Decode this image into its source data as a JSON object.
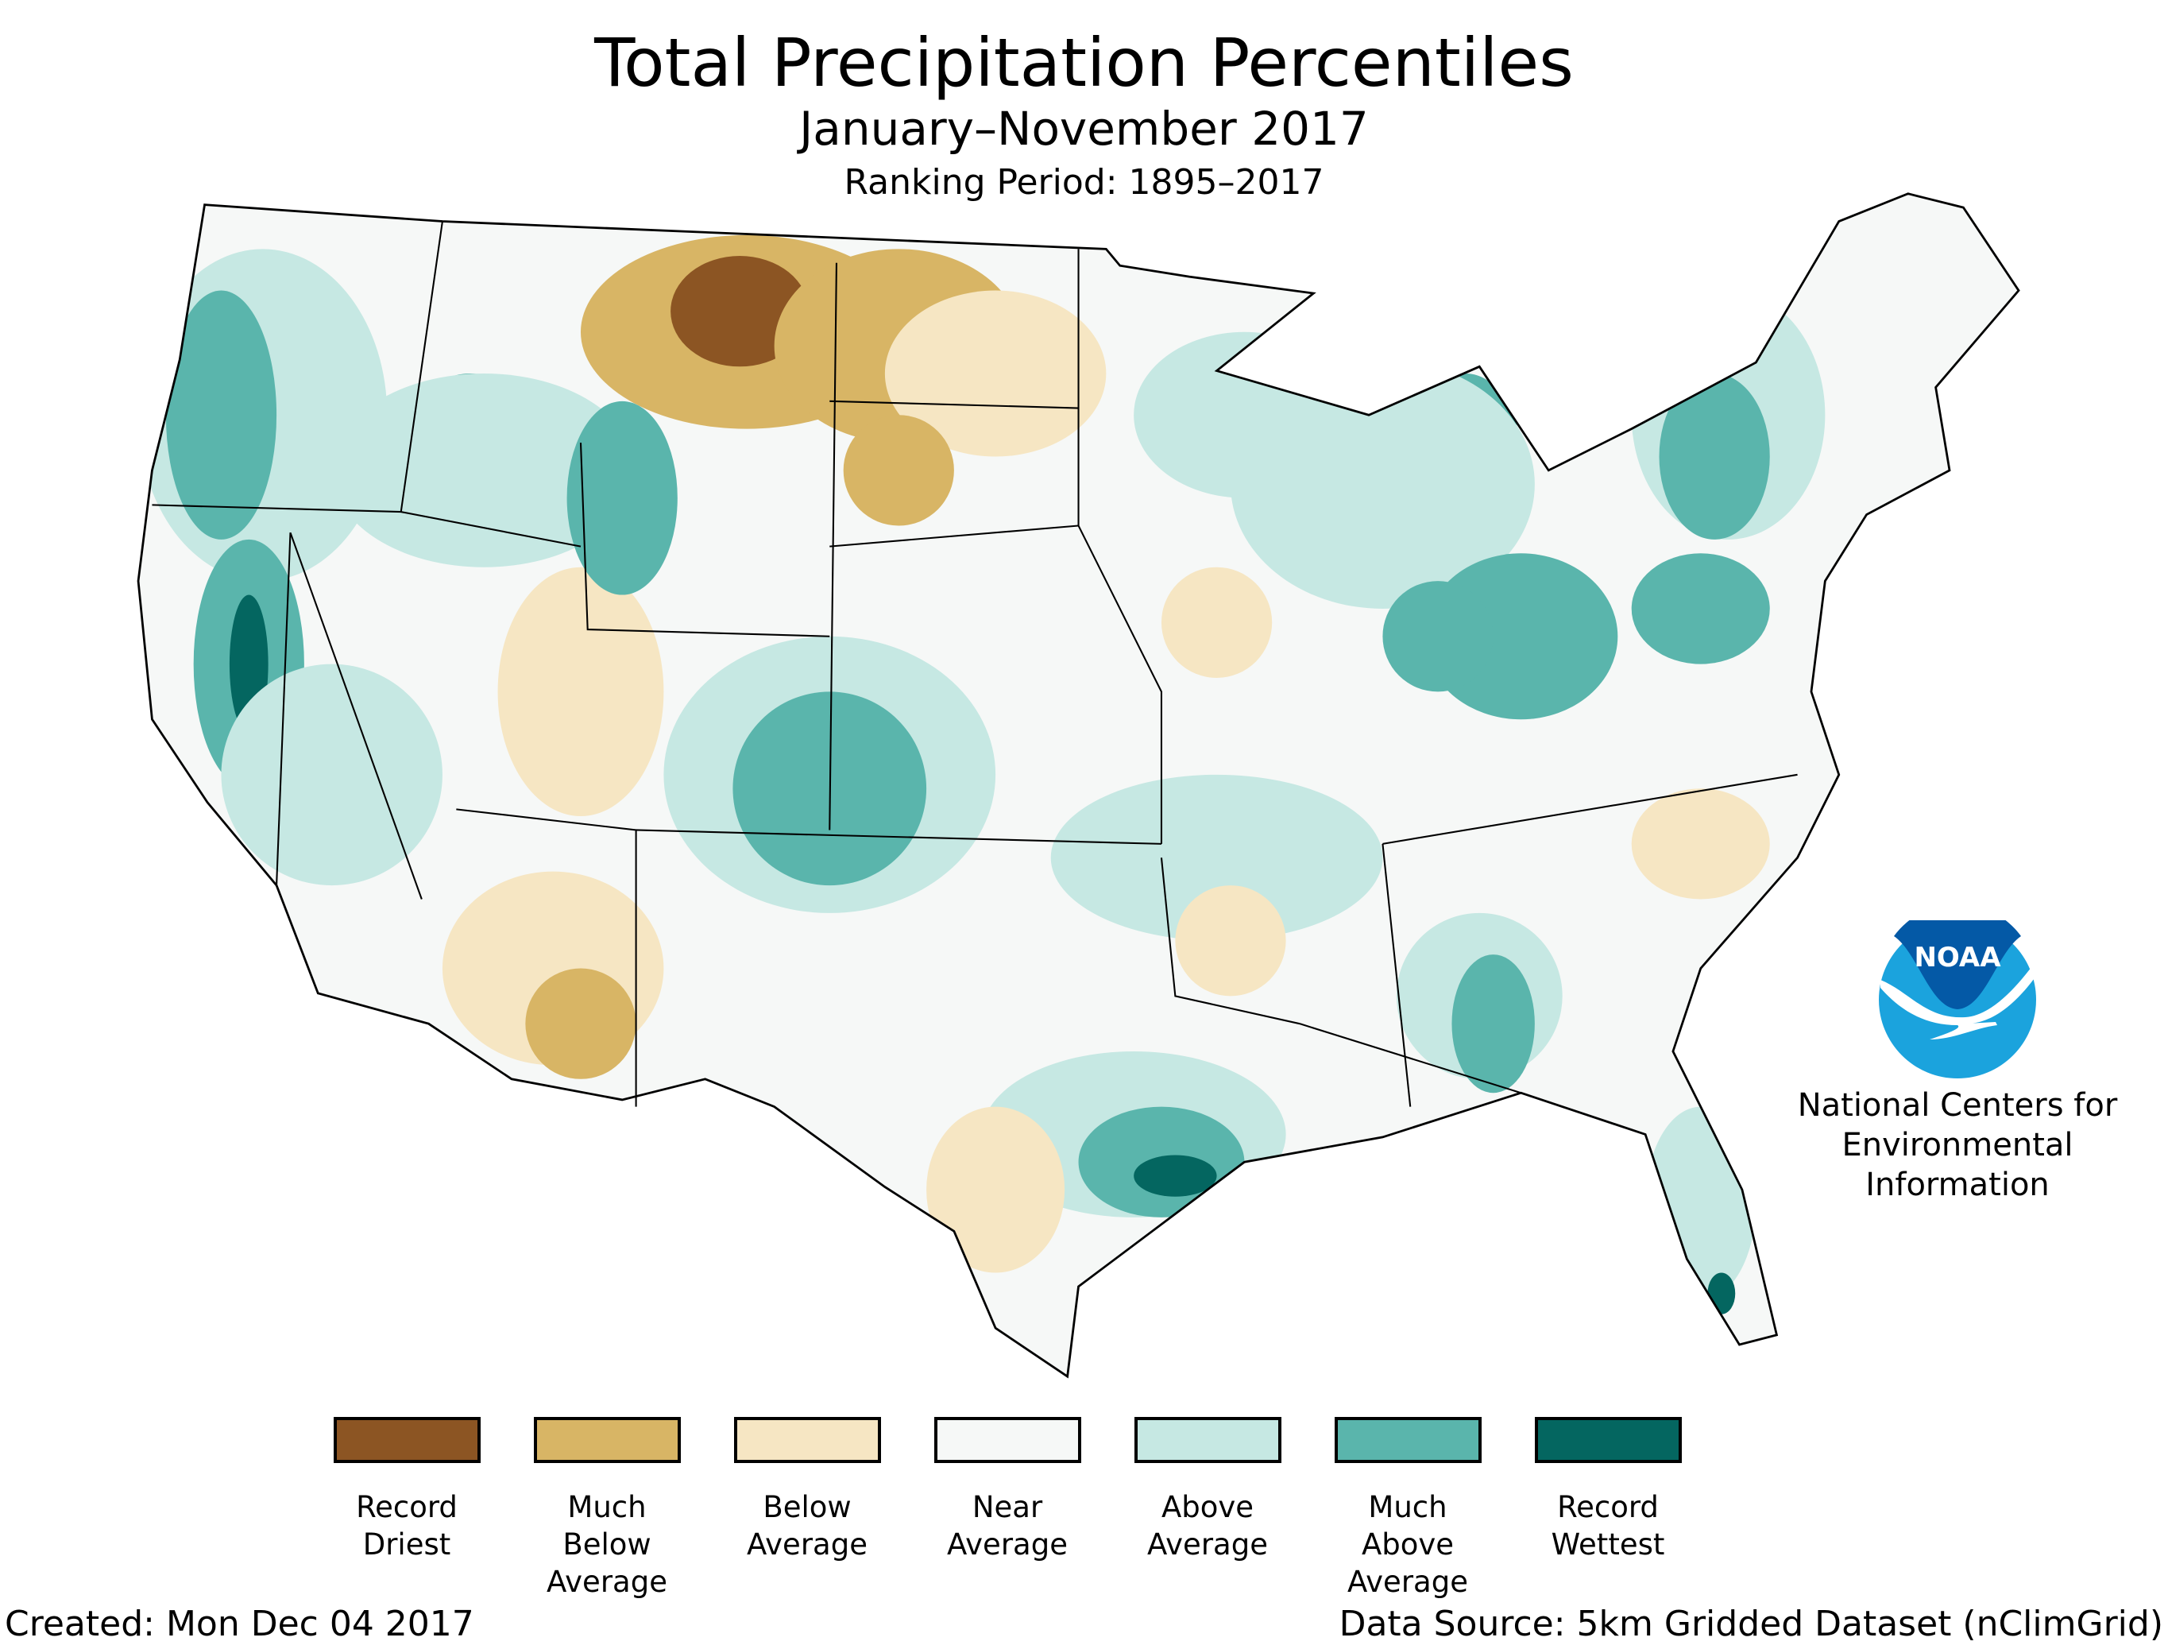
{
  "header": {
    "title": "Total Precipitation Percentiles",
    "subtitle": "January–November 2017",
    "ranking_period": "Ranking Period: 1895–2017"
  },
  "legend": [
    {
      "lines": [
        "Record",
        "Driest"
      ],
      "color": "#8c5523"
    },
    {
      "lines": [
        "Much",
        "Below",
        "Average"
      ],
      "color": "#d8b565"
    },
    {
      "lines": [
        "Below",
        "Average"
      ],
      "color": "#f6e6c3"
    },
    {
      "lines": [
        "Near",
        "Average"
      ],
      "color": "#f6f8f7"
    },
    {
      "lines": [
        "Above",
        "Average"
      ],
      "color": "#c6e8e3"
    },
    {
      "lines": [
        "Much",
        "Above",
        "Average"
      ],
      "color": "#5ab5ac"
    },
    {
      "lines": [
        "Record",
        "Wettest"
      ],
      "color": "#046660"
    }
  ],
  "logo": {
    "text": "NOAA",
    "dark_blue": "#0459a6",
    "light_blue": "#1ba3dd",
    "org_lines": [
      "National Centers for",
      "Environmental",
      "Information"
    ]
  },
  "footer": {
    "created": "Created: Mon Dec 04 2017",
    "data_source": "Data Source: 5km Gridded Dataset (nClimGrid)"
  }
}
